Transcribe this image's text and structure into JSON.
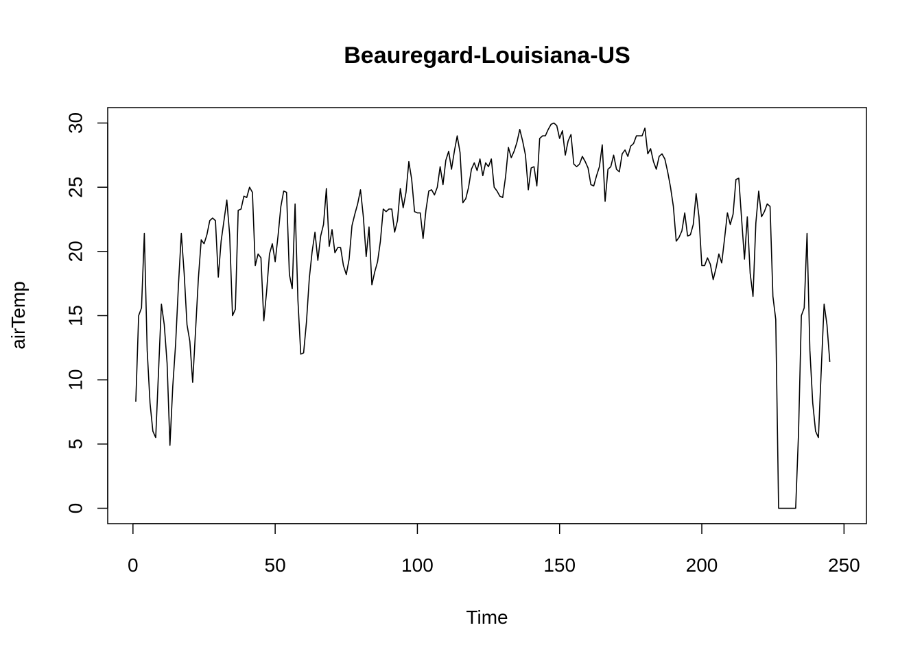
{
  "chart_data": {
    "type": "line",
    "title": "Beauregard-Louisiana-US",
    "xlabel": "Time",
    "ylabel": "airTemp",
    "xlim": [
      1,
      248
    ],
    "ylim": [
      0,
      30
    ],
    "x_ticks": [
      0,
      50,
      100,
      150,
      200,
      250
    ],
    "y_ticks": [
      0,
      5,
      10,
      15,
      20,
      25,
      30
    ],
    "grid": false,
    "line_color": "#000000",
    "series": [
      {
        "values": [
          8.3,
          15.0,
          15.6,
          21.4,
          12.3,
          8.2,
          6.0,
          5.5,
          10.7,
          15.9,
          14.3,
          11.3,
          4.9,
          9.5,
          12.8,
          17.4,
          21.4,
          18.3,
          14.3,
          13.0,
          9.8,
          13.8,
          17.9,
          20.9,
          20.6,
          21.3,
          22.4,
          22.6,
          22.4,
          18.0,
          20.8,
          22.4,
          24.0,
          21.3,
          15.0,
          15.5,
          23.2,
          23.3,
          24.3,
          24.2,
          25.0,
          24.6,
          18.9,
          19.8,
          19.5,
          14.6,
          16.9,
          19.8,
          20.6,
          19.2,
          21.2,
          23.5,
          24.7,
          24.6,
          18.2,
          17.1,
          23.7,
          16.2,
          12.0,
          12.1,
          14.5,
          17.9,
          20.0,
          21.5,
          19.3,
          21.2,
          22.1,
          24.9,
          20.4,
          21.7,
          19.9,
          20.3,
          20.3,
          18.9,
          18.2,
          19.4,
          22.0,
          22.9,
          23.7,
          24.8,
          22.7,
          19.6,
          21.9,
          17.4,
          18.4,
          19.2,
          20.8,
          23.3,
          23.1,
          23.3,
          23.3,
          21.5,
          22.4,
          24.9,
          23.4,
          24.6,
          27.0,
          25.6,
          23.1,
          23.0,
          23.0,
          21.0,
          23.2,
          24.7,
          24.8,
          24.4,
          25.0,
          26.6,
          25.2,
          27.1,
          27.8,
          26.4,
          27.8,
          29.0,
          27.7,
          23.8,
          24.1,
          25.0,
          26.4,
          26.9,
          26.3,
          27.2,
          25.9,
          26.9,
          26.6,
          27.2,
          25.0,
          24.7,
          24.3,
          24.2,
          25.8,
          28.1,
          27.3,
          27.8,
          28.5,
          29.5,
          28.6,
          27.5,
          24.8,
          26.5,
          26.6,
          25.1,
          28.8,
          29.0,
          29.0,
          29.5,
          29.9,
          30.0,
          29.8,
          28.8,
          29.4,
          27.5,
          28.6,
          29.1,
          26.8,
          26.6,
          26.8,
          27.4,
          27.0,
          26.5,
          25.2,
          25.1,
          25.9,
          26.6,
          28.3,
          23.9,
          26.4,
          26.6,
          27.5,
          26.4,
          26.2,
          27.6,
          27.9,
          27.4,
          28.2,
          28.4,
          29.0,
          29.0,
          29.0,
          29.6,
          27.6,
          28.0,
          27.0,
          26.4,
          27.4,
          27.6,
          27.2,
          26.2,
          25.0,
          23.5,
          20.8,
          21.1,
          21.6,
          23.0,
          21.2,
          21.3,
          22.1,
          24.5,
          22.7,
          18.9,
          18.9,
          19.5,
          19.0,
          17.8,
          18.7,
          19.8,
          19.1,
          21.0,
          23.0,
          22.1,
          22.9,
          25.6,
          25.7,
          22.5,
          19.4,
          22.7,
          18.3,
          16.5,
          22.2,
          24.7,
          22.7,
          23.1,
          23.7,
          23.5,
          16.5,
          14.7,
          0.0,
          0.0,
          0.0,
          0.0,
          0.0,
          0.0,
          0.0,
          5.8,
          15.0,
          15.6,
          21.4,
          12.3,
          8.2,
          6.0,
          5.5,
          10.8,
          15.9,
          14.3,
          11.4
        ]
      }
    ]
  }
}
